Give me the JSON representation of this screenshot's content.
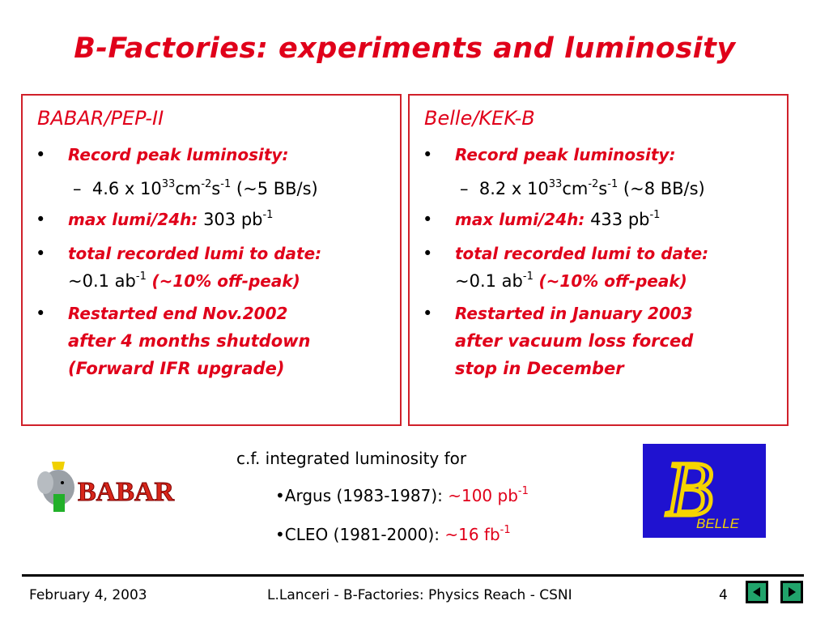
{
  "title": "B-Factories: experiments and luminosity",
  "left": {
    "heading": "BABAR/PEP-II",
    "bullet": "•",
    "peak_label": "Record peak luminosity:",
    "peak_dash": "–",
    "peak_value_a": "4.6 x 10",
    "peak_exp1": "33",
    "peak_unit_cm": "cm",
    "peak_exp2": "-2",
    "peak_unit_s": "s",
    "peak_exp3": "-1",
    "peak_tail": "(~5 BB/s)",
    "max_label": "max lumi/24h:",
    "max_value": "303 pb",
    "max_exp": "-1",
    "total_label": "total recorded lumi to date:",
    "total_value": "~0.1 ab",
    "total_exp": "-1",
    "total_note": "(~10% off-peak)",
    "restart_1": "Restarted end Nov.2002",
    "restart_2": "after 4 months shutdown",
    "restart_3": "(Forward IFR upgrade)"
  },
  "right": {
    "heading": "Belle/KEK-B",
    "bullet": "•",
    "peak_label": "Record peak luminosity:",
    "peak_dash": "–",
    "peak_value_a": "8.2 x 10",
    "peak_exp1": "33",
    "peak_unit_cm": "cm",
    "peak_exp2": "-2",
    "peak_unit_s": "s",
    "peak_exp3": "-1",
    "peak_tail": "(~8 BB/s)",
    "max_label": "max lumi/24h:",
    "max_value": "433 pb",
    "max_exp": "-1",
    "total_label": "total recorded lumi to date:",
    "total_value": "~0.1 ab",
    "total_exp": "-1",
    "total_note": "(~10% off-peak)",
    "restart_1": "Restarted in January 2003",
    "restart_2": "after vacuum loss forced",
    "restart_3": "stop in December"
  },
  "cf": {
    "intro": "c.f. integrated luminosity for",
    "argus_label": "•Argus (1983-1987): ",
    "argus_value": "~100 pb",
    "argus_exp": "-1",
    "cleo_label": "•CLEO (1981-2000): ",
    "cleo_value": "~16 fb",
    "cleo_exp": "-1"
  },
  "logos": {
    "babar_text": "BABAR",
    "belle_b": "B",
    "belle_text": "BELLE"
  },
  "footer": {
    "date": "February 4, 2003",
    "center": "L.Lanceri - B-Factories: Physics Reach - CSNI",
    "page": "4"
  },
  "colors": {
    "accent": "#e0001a",
    "belle_bg": "#1f12d0",
    "belle_fg": "#f5d400",
    "nav": "#21a36b"
  }
}
